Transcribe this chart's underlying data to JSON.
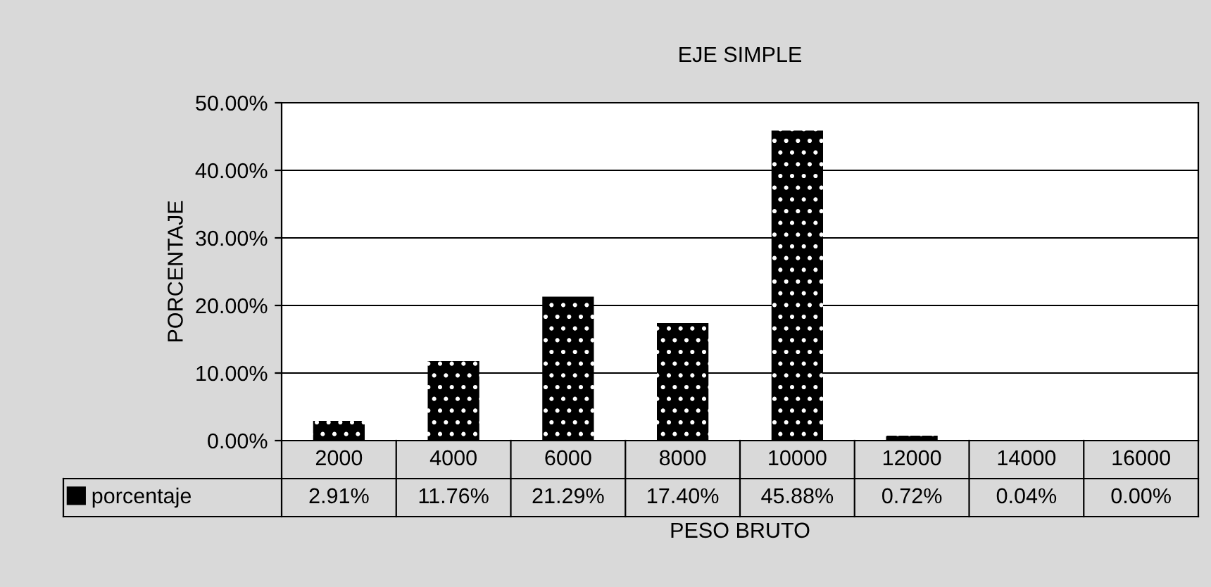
{
  "chart_data": {
    "type": "bar",
    "title": "EJE SIMPLE",
    "xlabel": "PESO BRUTO",
    "ylabel": "PORCENTAJE",
    "categories": [
      "2000",
      "4000",
      "6000",
      "8000",
      "10000",
      "12000",
      "14000",
      "16000"
    ],
    "series": [
      {
        "name": "porcentaje",
        "color": "#000000",
        "values": [
          2.91,
          11.76,
          21.29,
          17.4,
          45.88,
          0.72,
          0.04,
          0.0
        ],
        "value_labels": [
          "2.91%",
          "11.76%",
          "21.29%",
          "17.40%",
          "45.88%",
          "0.72%",
          "0.04%",
          "0.00%"
        ]
      }
    ],
    "ylim": [
      0,
      50
    ],
    "yticks": [
      {
        "value": 0,
        "label": "0.00%"
      },
      {
        "value": 10,
        "label": "10.00%"
      },
      {
        "value": 20,
        "label": "20.00%"
      },
      {
        "value": 30,
        "label": "30.00%"
      },
      {
        "value": 40,
        "label": "40.00%"
      },
      {
        "value": 50,
        "label": "50.00%"
      }
    ],
    "grid": "y",
    "legend": "bottom left"
  }
}
